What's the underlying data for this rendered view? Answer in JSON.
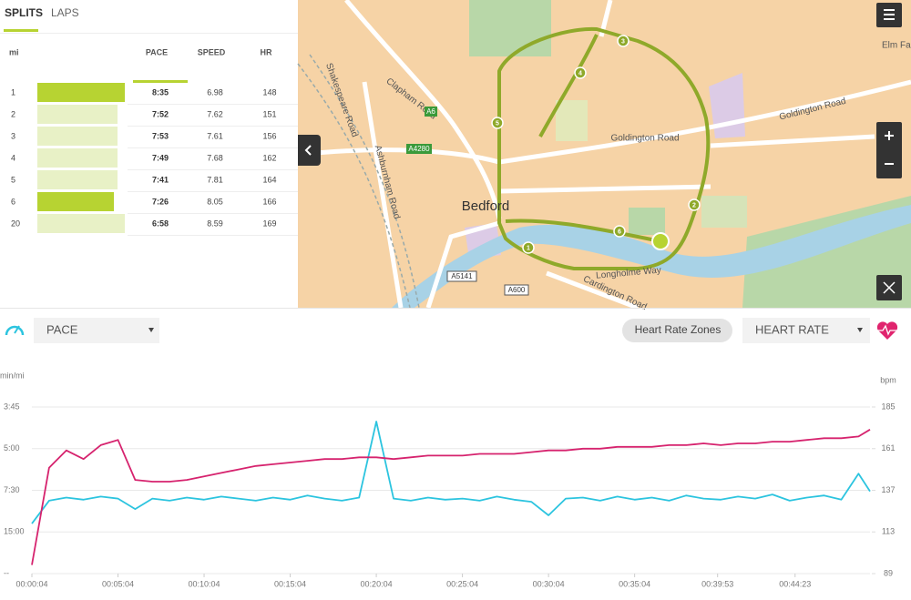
{
  "tabs": [
    "SPLITS",
    "LAPS"
  ],
  "splits": {
    "headers": [
      "mi",
      "PACE",
      "SPEED",
      "HR"
    ],
    "rows": [
      [
        "1",
        "8:35",
        "6.98",
        "148"
      ],
      [
        "2",
        "7:52",
        "7.62",
        "151"
      ],
      [
        "3",
        "7:53",
        "7.61",
        "156"
      ],
      [
        "4",
        "7:49",
        "7.68",
        "162"
      ],
      [
        "5",
        "7:41",
        "7.81",
        "164"
      ],
      [
        "6",
        "7:26",
        "8.05",
        "166"
      ],
      [
        "20",
        "6:58",
        "8.59",
        "169"
      ]
    ]
  },
  "map": {
    "labels": [
      "Clapham Road",
      "Shakespeare Road",
      "Ashburnham Road",
      "A6",
      "A4280",
      "Bedford",
      "Goldington Road",
      "Goldington Road",
      "A5141",
      "A600",
      "Cardington Road",
      "Longholme Way",
      "Elm Fa"
    ],
    "markers": [
      "1",
      "2",
      "3",
      "4",
      "5",
      "6"
    ]
  },
  "controls": {
    "left_metric": "PACE",
    "zones_button": "Heart Rate Zones",
    "right_metric": "HEART RATE"
  },
  "chart_data": {
    "type": "line",
    "ylabel": "min/mi",
    "y2label": "bpm",
    "x": [
      4,
      64,
      124,
      184,
      244,
      304,
      364,
      424,
      484,
      544,
      604,
      664,
      724,
      784,
      844,
      904,
      964,
      1024,
      1084,
      1144,
      1204,
      1264,
      1324,
      1384,
      1444,
      1504,
      1564,
      1624,
      1684,
      1744,
      1804,
      1864,
      1924,
      1984,
      2044,
      2104,
      2164,
      2224,
      2284,
      2344,
      2404,
      2464,
      2524,
      2584,
      2644,
      2704,
      2764,
      2824,
      2884,
      2924
    ],
    "xlim": [
      4,
      2924
    ],
    "xticks": [
      {
        "value": 4,
        "label": "00:00:04"
      },
      {
        "value": 304,
        "label": "00:05:04"
      },
      {
        "value": 604,
        "label": "00:10:04"
      },
      {
        "value": 904,
        "label": "00:15:04"
      },
      {
        "value": 1204,
        "label": "00:20:04"
      },
      {
        "value": 1504,
        "label": "00:25:04"
      },
      {
        "value": 1804,
        "label": "00:30:04"
      },
      {
        "value": 2104,
        "label": "00:35:04"
      },
      {
        "value": 2393,
        "label": "00:39:53"
      },
      {
        "value": 2663,
        "label": "00:44:23"
      }
    ],
    "ylim": [
      0,
      16
    ],
    "yticks": [
      {
        "value": 16,
        "label": "3:45"
      },
      {
        "value": 12,
        "label": "5:00"
      },
      {
        "value": 8,
        "label": "7:30"
      },
      {
        "value": 4,
        "label": "15:00"
      },
      {
        "value": 0,
        "label": "--"
      }
    ],
    "y2lim": [
      89,
      185
    ],
    "y2ticks": [
      185,
      161,
      137,
      113,
      89
    ],
    "grid": true,
    "series": [
      {
        "color": "#2cc4df",
        "values": [
          4.8,
          7.0,
          7.3,
          7.1,
          7.4,
          7.2,
          6.2,
          7.2,
          7.0,
          7.3,
          7.1,
          7.4,
          7.2,
          7.0,
          7.3,
          7.1,
          7.5,
          7.2,
          7.0,
          7.3,
          14.6,
          7.2,
          7.0,
          7.3,
          7.1,
          7.2,
          7.0,
          7.4,
          7.1,
          6.9,
          5.6,
          7.2,
          7.3,
          7.0,
          7.4,
          7.1,
          7.3,
          7.0,
          7.5,
          7.2,
          7.1,
          7.4,
          7.2,
          7.6,
          7.0,
          7.3,
          7.5,
          7.1,
          9.6,
          7.9
        ]
      },
      {
        "color": "#d6236e",
        "axis": "y2",
        "values": [
          94,
          150,
          160,
          155,
          163,
          166,
          143,
          142,
          142,
          143,
          145,
          147,
          149,
          151,
          152,
          153,
          154,
          155,
          155,
          156,
          156,
          155,
          156,
          157,
          157,
          157,
          158,
          158,
          158,
          159,
          160,
          160,
          161,
          161,
          162,
          162,
          162,
          163,
          163,
          164,
          163,
          164,
          164,
          165,
          165,
          166,
          167,
          167,
          168,
          172
        ]
      }
    ]
  }
}
